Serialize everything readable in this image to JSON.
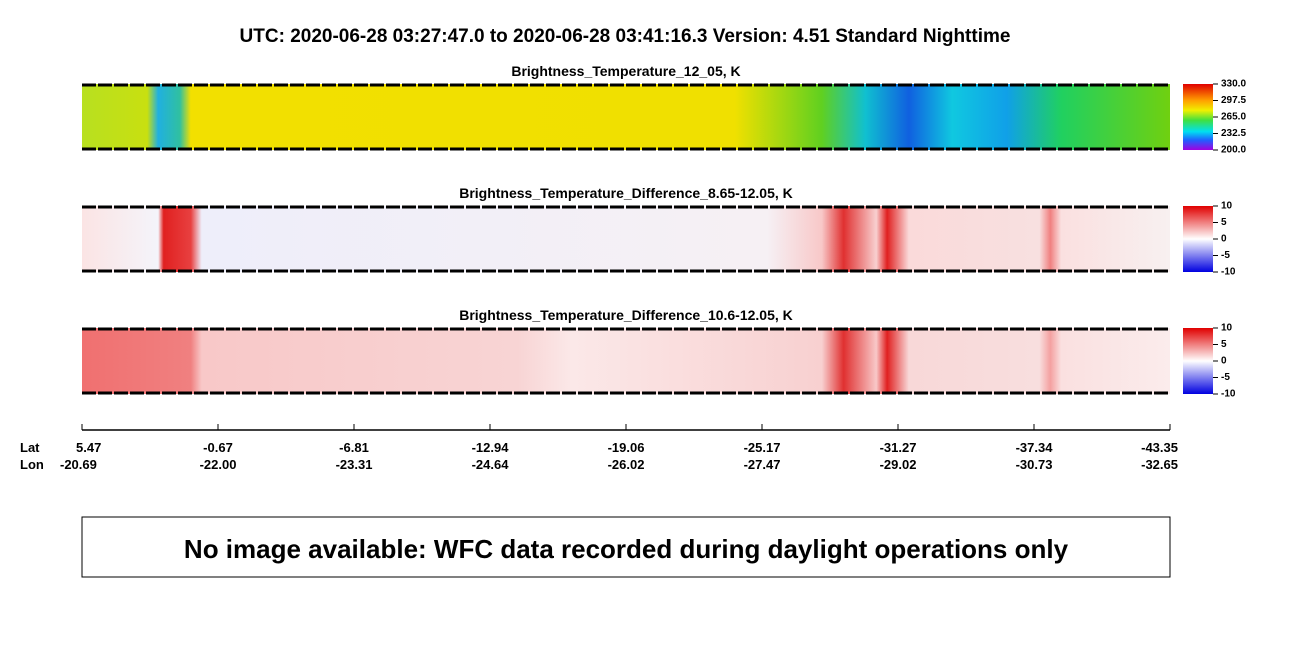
{
  "header": {
    "title": "UTC:  2020-06-28   03:27:47.0  to  2020-06-28   03:41:16.3    Version: 4.51  Standard Nighttime"
  },
  "panels": [
    {
      "title": "Brightness_Temperature_12_05, K",
      "colorbar": [
        "330.0",
        "297.5",
        "265.0",
        "232.5",
        "200.0"
      ]
    },
    {
      "title": "Brightness_Temperature_Difference_8.65-12.05, K",
      "colorbar": [
        "10",
        "5",
        "0",
        "-5",
        "-10"
      ]
    },
    {
      "title": "Brightness_Temperature_Difference_10.6-12.05, K",
      "colorbar": [
        "10",
        "5",
        "0",
        "-5",
        "-10"
      ]
    }
  ],
  "axis": {
    "lat_label": "Lat",
    "lon_label": "Lon",
    "lat": [
      "5.47",
      "-0.67",
      "-6.81",
      "-12.94",
      "-19.06",
      "-25.17",
      "-31.27",
      "-37.34",
      "-43.35"
    ],
    "lon": [
      "-20.69",
      "-22.00",
      "-23.31",
      "-24.64",
      "-26.02",
      "-27.47",
      "-29.02",
      "-30.73",
      "-32.65"
    ]
  },
  "message": "No image available: WFC data recorded during daylight operations only"
}
